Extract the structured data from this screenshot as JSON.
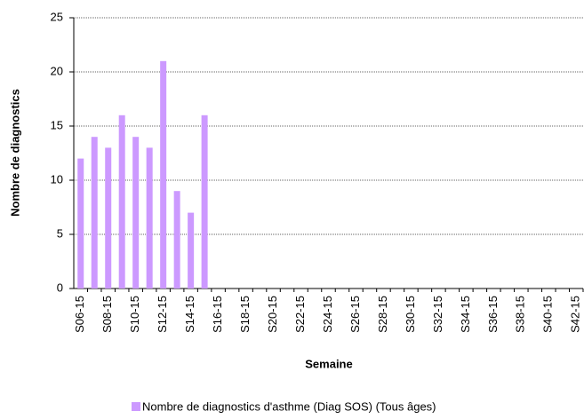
{
  "chart_data": {
    "type": "bar",
    "x_label": "Semaine",
    "y_label": "Nombre de diagnostics",
    "categories": [
      "S06-15",
      null,
      "S08-15",
      null,
      "S10-15",
      null,
      "S12-15",
      null,
      "S14-15",
      null,
      "S16-15",
      null,
      "S18-15",
      null,
      "S20-15",
      null,
      "S22-15",
      null,
      "S24-15",
      null,
      "S26-15",
      null,
      "S28-15",
      null,
      "S30-15",
      null,
      "S32-15",
      null,
      "S34-15",
      null,
      "S36-15",
      null,
      "S38-15",
      null,
      "S40-15",
      null,
      "S42-15"
    ],
    "series": [
      {
        "name": "Nombre de diagnostics d'asthme (Diag SOS) (Tous âges)",
        "color": "#cc99ff",
        "values": [
          12,
          14,
          13,
          16,
          14,
          13,
          21,
          9,
          7,
          16,
          null,
          null,
          null,
          null,
          null,
          null,
          null,
          null,
          null,
          null,
          null,
          null,
          null,
          null,
          null,
          null,
          null,
          null,
          null,
          null,
          null,
          null,
          null,
          null,
          null,
          null,
          null
        ]
      }
    ],
    "ylim": [
      0,
      25
    ],
    "yticks": [
      0,
      5,
      10,
      15,
      20,
      25
    ],
    "grid": true,
    "legend": "bottom"
  }
}
